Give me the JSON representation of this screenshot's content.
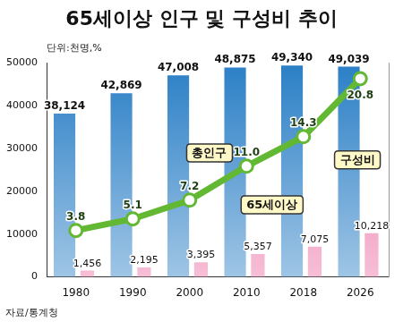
{
  "chart_data": {
    "type": "bar",
    "title": "65세이상 인구 및 구성비 추이",
    "subtitle": "단위:천명,%",
    "source": "자료/통계청",
    "categories": [
      "1980",
      "1990",
      "2000",
      "2010",
      "2018",
      "2026"
    ],
    "series": [
      {
        "name": "총인구",
        "type": "bar",
        "color": "#2a7fc6",
        "values": [
          38124,
          42869,
          47008,
          48875,
          49340,
          49039
        ],
        "value_labels": [
          "38,124",
          "42,869",
          "47,008",
          "48,875",
          "49,340",
          "49,039"
        ]
      },
      {
        "name": "65세이상",
        "type": "bar",
        "color": "#ec6fa3",
        "values": [
          1456,
          2195,
          3395,
          5357,
          7075,
          10218
        ],
        "value_labels": [
          "1,456",
          "2,195",
          "3,395",
          "5,357",
          "7,075",
          "10,218"
        ]
      },
      {
        "name": "구성비",
        "type": "line",
        "axis": "y2",
        "color": "#62b832",
        "marker": "circle",
        "values": [
          3.8,
          5.1,
          7.2,
          11.0,
          14.3,
          20.8
        ],
        "value_labels": [
          "3.8",
          "5.1",
          "7.2",
          "11.0",
          "14.3",
          "20.8"
        ]
      }
    ],
    "ylim": [
      0,
      50000
    ],
    "yticks": [
      0,
      10000,
      20000,
      30000,
      40000,
      50000
    ],
    "y2lim": [
      -1.4,
      22.6
    ],
    "grid": false,
    "data_labels": true
  }
}
